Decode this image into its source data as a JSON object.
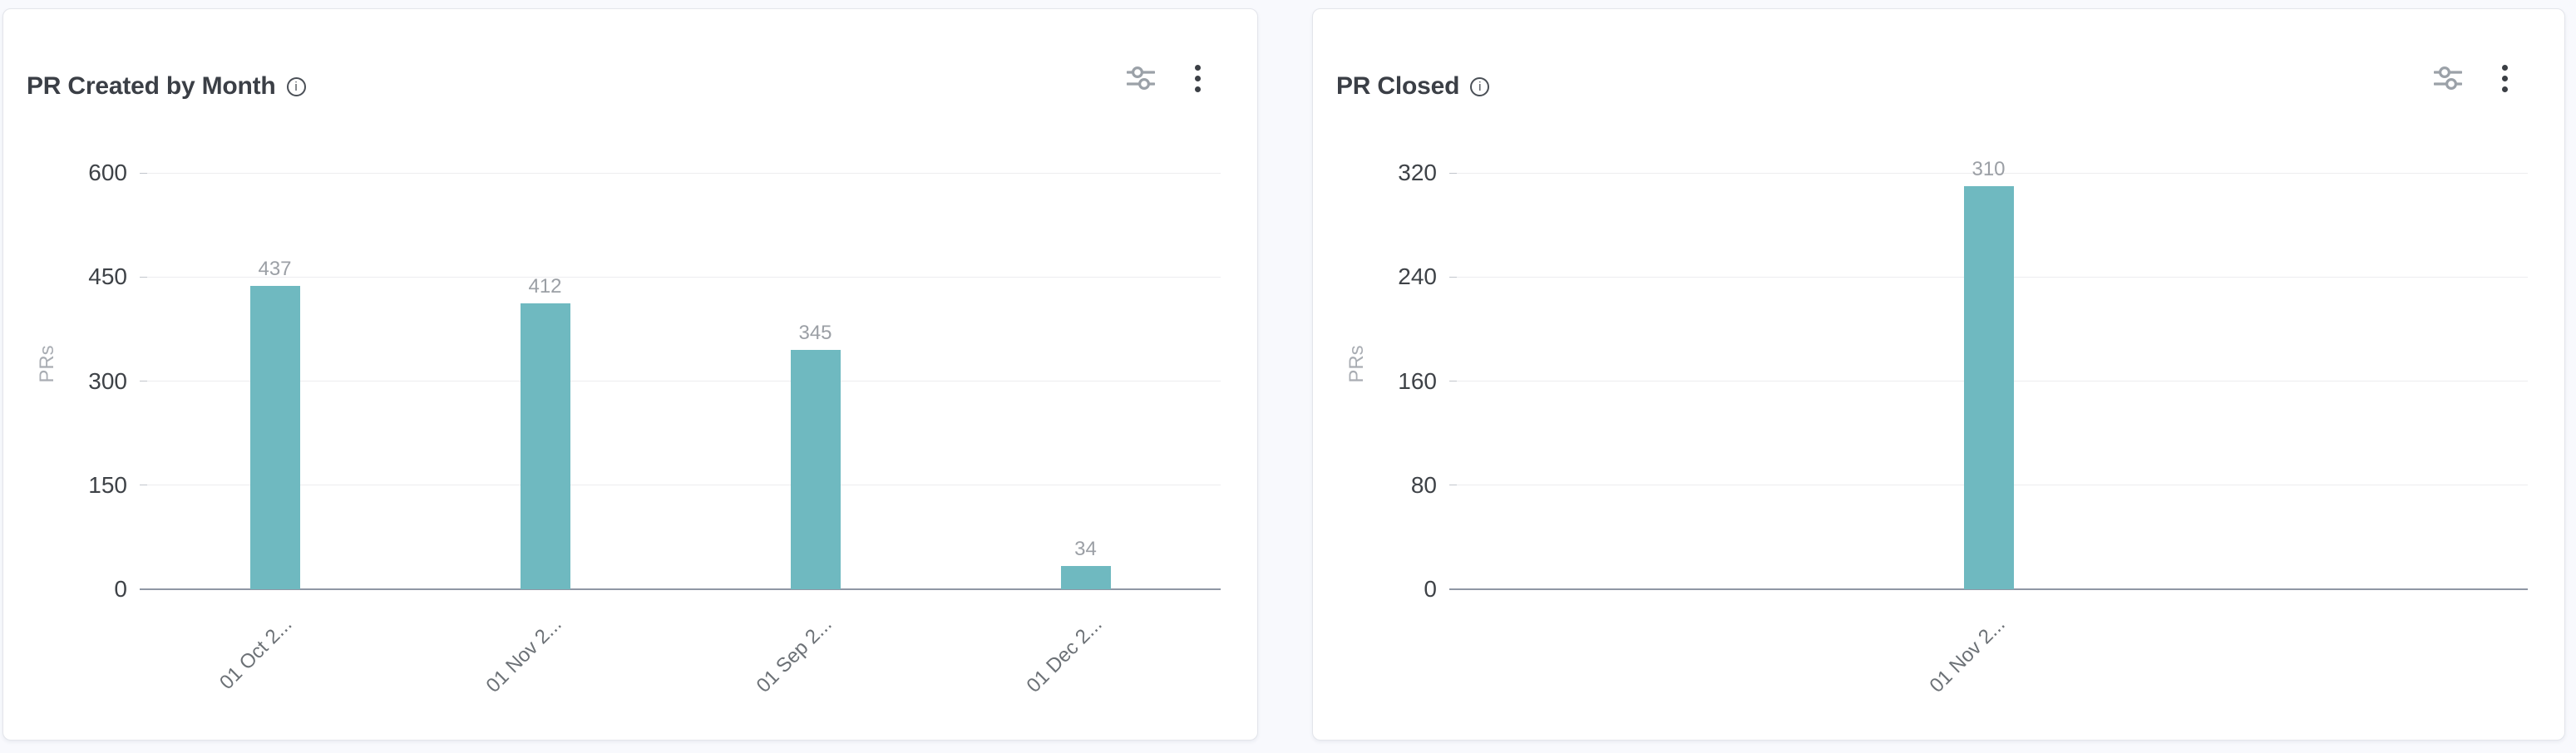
{
  "page": {
    "background_color": "#f8f9fd",
    "card_background": "#ffffff",
    "accent_bar_color": "#6FB9C0"
  },
  "charts": [
    {
      "title": "PR Created by Month",
      "info_icon": "info-circle",
      "info_glyph": "i",
      "actions": {
        "filter_icon": "sliders",
        "menu_icon": "kebab-vertical"
      },
      "chart_data": {
        "type": "bar",
        "categories": [
          "01 Oct 2...",
          "01 Nov 2...",
          "01 Sep 2...",
          "01 Dec 2..."
        ],
        "values": [
          437,
          412,
          345,
          34
        ],
        "title": "PR Created by Month",
        "xlabel": "",
        "ylabel": "PRs",
        "ylim": [
          0,
          600
        ],
        "yticks": [
          0,
          150,
          300,
          450,
          600
        ],
        "bar_color": "#6FB9C0",
        "value_labels": [
          437,
          412,
          345,
          34
        ],
        "grid": true,
        "legend": false
      }
    },
    {
      "title": "PR Closed",
      "info_icon": "info-circle",
      "info_glyph": "i",
      "actions": {
        "filter_icon": "sliders",
        "menu_icon": "kebab-vertical"
      },
      "chart_data": {
        "type": "bar",
        "categories": [
          "01 Nov 2..."
        ],
        "values": [
          310
        ],
        "title": "PR Closed",
        "xlabel": "",
        "ylabel": "PRs",
        "ylim": [
          0,
          320
        ],
        "yticks": [
          0,
          80,
          160,
          240,
          320
        ],
        "bar_color": "#6FB9C0",
        "value_labels": [
          310
        ],
        "grid": true,
        "legend": false
      }
    }
  ]
}
